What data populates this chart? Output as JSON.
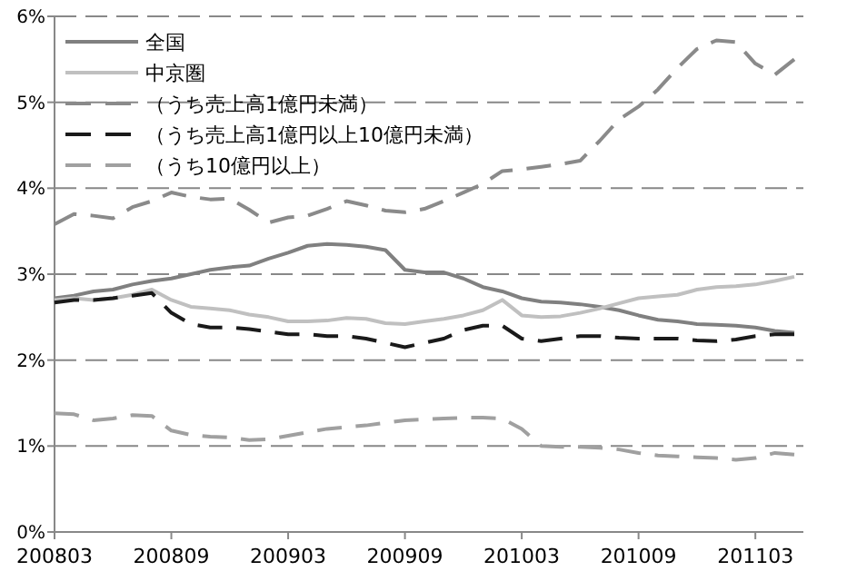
{
  "chart_data": {
    "type": "line",
    "categories": [
      "200803",
      null,
      null,
      null,
      null,
      null,
      "200809",
      null,
      null,
      null,
      null,
      null,
      "200903",
      null,
      null,
      null,
      null,
      null,
      "200909",
      null,
      null,
      null,
      null,
      null,
      "201003",
      null,
      null,
      null,
      null,
      null,
      "201009",
      null,
      null,
      null,
      null,
      null,
      "201103",
      null,
      null
    ],
    "ylim": [
      0,
      6
    ],
    "yticks": [
      {
        "value": 0,
        "label": "0%"
      },
      {
        "value": 1,
        "label": "1%"
      },
      {
        "value": 2,
        "label": "2%"
      },
      {
        "value": 3,
        "label": "3%"
      },
      {
        "value": 4,
        "label": "4%"
      },
      {
        "value": 5,
        "label": "5%"
      },
      {
        "value": 6,
        "label": "6%"
      }
    ],
    "grid": "y",
    "legend": "top left",
    "series": [
      {
        "name": "全国",
        "color": "#808080",
        "line_style": "solid",
        "values": [
          2.72,
          2.75,
          2.8,
          2.82,
          2.88,
          2.92,
          2.95,
          3.0,
          3.05,
          3.08,
          3.1,
          3.18,
          3.25,
          3.33,
          3.35,
          3.34,
          3.32,
          3.28,
          3.05,
          3.02,
          3.02,
          2.95,
          2.85,
          2.8,
          2.72,
          2.68,
          2.67,
          2.65,
          2.62,
          2.58,
          2.52,
          2.47,
          2.45,
          2.42,
          2.41,
          2.4,
          2.38,
          2.34,
          2.32
        ]
      },
      {
        "name": "中京圏",
        "color": "#c0c0c0",
        "line_style": "solid",
        "values": [
          2.7,
          2.72,
          2.7,
          2.72,
          2.76,
          2.82,
          2.7,
          2.62,
          2.6,
          2.58,
          2.53,
          2.5,
          2.45,
          2.45,
          2.46,
          2.49,
          2.48,
          2.43,
          2.42,
          2.45,
          2.48,
          2.52,
          2.58,
          2.7,
          2.52,
          2.5,
          2.51,
          2.55,
          2.6,
          2.66,
          2.72,
          2.74,
          2.76,
          2.82,
          2.85,
          2.86,
          2.88,
          2.92,
          2.97
        ]
      },
      {
        "name": "（うち売上高1億円未満）",
        "color": "#8a8a8a",
        "line_style": "dashed",
        "values": [
          3.58,
          3.7,
          3.68,
          3.65,
          3.78,
          3.85,
          3.95,
          3.9,
          3.87,
          3.88,
          3.75,
          3.6,
          3.66,
          3.68,
          3.76,
          3.85,
          3.8,
          3.74,
          3.72,
          3.76,
          3.85,
          3.95,
          4.05,
          4.2,
          4.22,
          4.25,
          4.28,
          4.32,
          4.55,
          4.8,
          4.95,
          5.15,
          5.4,
          5.62,
          5.72,
          5.7,
          5.45,
          5.32,
          5.5
        ]
      },
      {
        "name": "（うち売上高1億円以上10億円未満）",
        "color": "#1a1a1a",
        "line_style": "dashed",
        "values": [
          2.67,
          2.7,
          2.7,
          2.72,
          2.75,
          2.78,
          2.55,
          2.42,
          2.38,
          2.38,
          2.36,
          2.33,
          2.3,
          2.3,
          2.28,
          2.28,
          2.25,
          2.2,
          2.15,
          2.2,
          2.25,
          2.35,
          2.4,
          2.4,
          2.25,
          2.22,
          2.25,
          2.28,
          2.28,
          2.26,
          2.25,
          2.25,
          2.25,
          2.23,
          2.22,
          2.24,
          2.28,
          2.3,
          2.3
        ]
      },
      {
        "name": "（うち10億円以上）",
        "color": "#a0a0a0",
        "line_style": "dashed",
        "values": [
          1.38,
          1.37,
          1.3,
          1.32,
          1.36,
          1.35,
          1.18,
          1.13,
          1.11,
          1.1,
          1.07,
          1.08,
          1.12,
          1.16,
          1.2,
          1.22,
          1.24,
          1.27,
          1.3,
          1.31,
          1.32,
          1.33,
          1.33,
          1.32,
          1.2,
          1.0,
          0.99,
          0.99,
          0.98,
          0.96,
          0.92,
          0.89,
          0.88,
          0.87,
          0.86,
          0.84,
          0.86,
          0.92,
          0.9
        ]
      }
    ]
  }
}
